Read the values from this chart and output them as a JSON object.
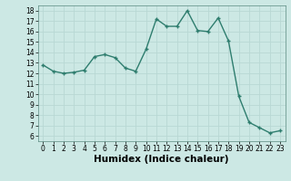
{
  "x": [
    0,
    1,
    2,
    3,
    4,
    5,
    6,
    7,
    8,
    9,
    10,
    11,
    12,
    13,
    14,
    15,
    16,
    17,
    18,
    19,
    20,
    21,
    22,
    23
  ],
  "y": [
    12.8,
    12.2,
    12.0,
    12.1,
    12.3,
    13.6,
    13.8,
    13.5,
    12.5,
    12.2,
    14.3,
    17.2,
    16.5,
    16.5,
    18.0,
    16.1,
    16.0,
    17.3,
    15.1,
    9.8,
    7.3,
    6.8,
    6.3,
    6.5
  ],
  "line_color": "#2e7d6e",
  "marker": "+",
  "marker_size": 3,
  "marker_linewidth": 1.0,
  "line_width": 1.0,
  "xlabel": "Humidex (Indice chaleur)",
  "xlim": [
    -0.5,
    23.5
  ],
  "ylim": [
    5.5,
    18.5
  ],
  "yticks": [
    6,
    7,
    8,
    9,
    10,
    11,
    12,
    13,
    14,
    15,
    16,
    17,
    18
  ],
  "xticks": [
    0,
    1,
    2,
    3,
    4,
    5,
    6,
    7,
    8,
    9,
    10,
    11,
    12,
    13,
    14,
    15,
    16,
    17,
    18,
    19,
    20,
    21,
    22,
    23
  ],
  "background_color": "#cce8e4",
  "grid_color": "#b8d8d4",
  "tick_fontsize": 5.5,
  "xlabel_fontsize": 7.5
}
